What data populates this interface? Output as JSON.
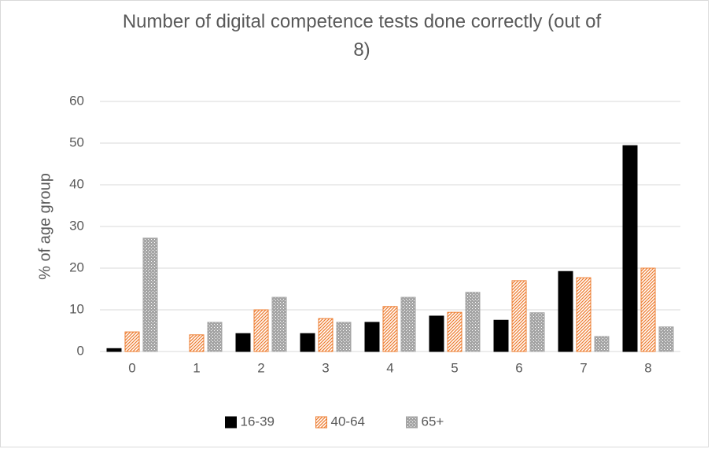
{
  "chart_data": {
    "type": "bar",
    "title": "Number of digital competence tests done correctly (out of 8)",
    "y_label": "% of age group",
    "categories": [
      "0",
      "1",
      "2",
      "3",
      "4",
      "5",
      "6",
      "7",
      "8"
    ],
    "series": [
      {
        "name": "16-39",
        "color": "#000000",
        "pattern": "solid",
        "values": [
          0.7,
          0,
          4.3,
          4.3,
          7,
          8.5,
          7.5,
          19.2,
          49.4
        ]
      },
      {
        "name": "40-64",
        "color": "#ed7d31",
        "pattern": "hatch",
        "values": [
          4.7,
          4,
          10,
          7.9,
          10.8,
          9.4,
          17,
          17.7,
          20
        ]
      },
      {
        "name": "65+",
        "color": "#a5a5a5",
        "pattern": "dots",
        "values": [
          27.2,
          7,
          13,
          7,
          13,
          14.2,
          9.3,
          3.6,
          5.9
        ]
      }
    ],
    "ylim": [
      0,
      60
    ],
    "yticks": [
      0,
      10,
      20,
      30,
      40,
      50,
      60
    ],
    "grid": true,
    "legend": "bottom"
  }
}
